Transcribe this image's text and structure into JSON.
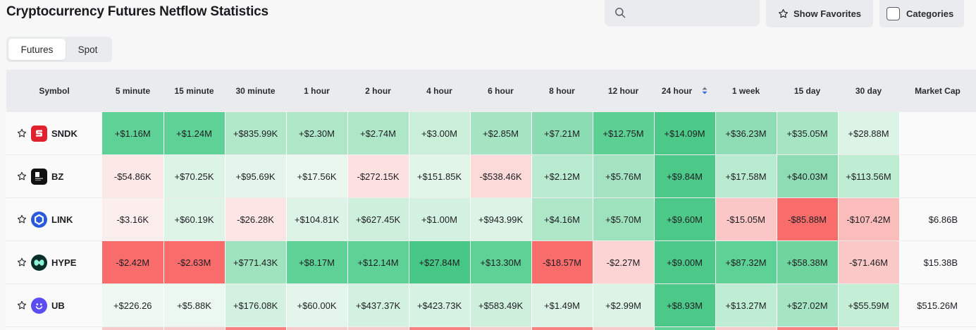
{
  "page": {
    "title": "Cryptocurrency Futures Netflow Statistics"
  },
  "toolbar": {
    "search_placeholder": "",
    "search_icon": "search-icon",
    "favorites_label": "Show Favorites",
    "categories_label": "Categories"
  },
  "tabs": [
    {
      "label": "Futures",
      "active": true
    },
    {
      "label": "Spot",
      "active": false
    }
  ],
  "table": {
    "columns": [
      "Symbol",
      "5 minute",
      "15 minute",
      "30 minute",
      "1 hour",
      "2 hour",
      "4 hour",
      "6 hour",
      "8 hour",
      "12 hour",
      "24 hour",
      "1 week",
      "15 day",
      "30 day",
      "Market Cap"
    ],
    "sorted_column": "24 hour",
    "rows": [
      {
        "symbol": "SNDK",
        "logo": "sndk-logo",
        "values": [
          "+$1.16M",
          "+$1.24M",
          "+$835.99K",
          "+$2.30M",
          "+$2.74M",
          "+$3.00M",
          "+$2.85M",
          "+$7.21M",
          "+$12.75M",
          "+$14.09M",
          "+$36.23M",
          "+$35.05M",
          "+$28.88M"
        ],
        "colors": [
          "#5dd196",
          "#5dd196",
          "#b0e8c9",
          "#aee6c8",
          "#aee6c8",
          "#c9efd9",
          "#a4e4c2",
          "#8cdcb3",
          "#5ccf93",
          "#4cc988",
          "#8ddcb4",
          "#a6e5c4",
          "#dcf4e6"
        ],
        "market_cap": ""
      },
      {
        "symbol": "BZ",
        "logo": "bz-logo",
        "values": [
          "-$54.86K",
          "+$70.25K",
          "+$95.69K",
          "+$17.56K",
          "-$272.15K",
          "+$151.85K",
          "-$538.46K",
          "+$2.12M",
          "+$5.76M",
          "+$9.84M",
          "+$17.58M",
          "+$40.03M",
          "+$113.56M"
        ],
        "colors": [
          "#fde8e8",
          "#dcf4e6",
          "#e4f6eb",
          "#e9f7ef",
          "#fde1e1",
          "#e1f5e9",
          "#fcdada",
          "#b9ebd0",
          "#a3e3c1",
          "#4cc988",
          "#b9ebd0",
          "#8ddcb4",
          "#bfedd3"
        ],
        "market_cap": ""
      },
      {
        "symbol": "LINK",
        "logo": "link-logo",
        "values": [
          "-$3.16K",
          "+$60.19K",
          "-$26.28K",
          "+$104.81K",
          "+$627.45K",
          "+$1.00M",
          "+$943.99K",
          "+$4.16M",
          "+$5.70M",
          "+$9.60M",
          "-$15.05M",
          "-$85.88M",
          "-$107.42M"
        ],
        "colors": [
          "#fdeeee",
          "#ddf4e7",
          "#fde5e5",
          "#dcf4e6",
          "#cfefdd",
          "#d3f1e0",
          "#dcf4e6",
          "#aee6c8",
          "#9de1bd",
          "#4cc988",
          "#fbc6c6",
          "#f96c6c",
          "#fbbcbc"
        ],
        "market_cap": "$6.86B"
      },
      {
        "symbol": "HYPE",
        "logo": "hype-logo",
        "values": [
          "-$2.42M",
          "-$2.63M",
          "+$771.43K",
          "+$8.17M",
          "+$12.14M",
          "+$27.84M",
          "+$13.30M",
          "-$18.57M",
          "-$2.27M",
          "+$9.00M",
          "+$87.32M",
          "+$58.38M",
          "-$71.46M"
        ],
        "colors": [
          "#f96c6c",
          "#f96c6c",
          "#9fe2be",
          "#5dd196",
          "#5dd196",
          "#47c785",
          "#5dd196",
          "#f96c6c",
          "#fcd4d4",
          "#4cc988",
          "#5dd196",
          "#6ed59f",
          "#fbc8c8"
        ],
        "market_cap": "$15.38B"
      },
      {
        "symbol": "UB",
        "logo": "ub-logo",
        "values": [
          "+$226.26",
          "+$5.88K",
          "+$176.08K",
          "+$60.00K",
          "+$437.37K",
          "+$423.73K",
          "+$583.49K",
          "+$1.49M",
          "+$2.99M",
          "+$8.93M",
          "+$13.27M",
          "+$27.02M",
          "+$55.59M"
        ],
        "colors": [
          "#eef9f2",
          "#ebf8f0",
          "#d3f1e0",
          "#e4f6eb",
          "#d3f1e0",
          "#d6f2e2",
          "#cfefdd",
          "#dcf4e6",
          "#dcf4e6",
          "#4cc988",
          "#bfedd3",
          "#a6e5c4",
          "#c4eed6"
        ],
        "market_cap": "$515.26M"
      }
    ],
    "partial_row_colors": [
      "#f7c9c9",
      "#f7c9c9",
      "#f98080",
      "#f7c9c9",
      "#f7c9c9",
      "#f98080",
      "#f7c9c9",
      "#f98080",
      "#f7c9c9",
      "#5dd196",
      "#f7c9c9",
      "#f98080",
      "#f7c9c9"
    ]
  }
}
